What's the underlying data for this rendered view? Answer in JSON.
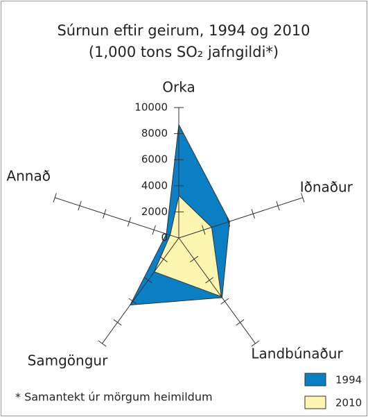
{
  "chart_data": {
    "type": "radar",
    "title": "Súrnun eftir geirum, 1994 og 2010",
    "subtitle": "(1,000 tons SO₂ jafngildi*)",
    "footnote": "* Samantekt úr mörgum heimildum",
    "categories": [
      "Orka",
      "Iðnaður",
      "Landbúnaður",
      "Samgöngur",
      "Annað"
    ],
    "series": [
      {
        "name": "1994",
        "color": "#0a7fc4",
        "values": [
          8700,
          4100,
          5650,
          6350,
          1000
        ]
      },
      {
        "name": "2010",
        "color": "#fdf6b0",
        "values": [
          3250,
          2650,
          5550,
          3200,
          700
        ]
      }
    ],
    "rlim": [
      0,
      10000
    ],
    "rticks": [
      0,
      2000,
      4000,
      6000,
      8000,
      10000
    ]
  }
}
